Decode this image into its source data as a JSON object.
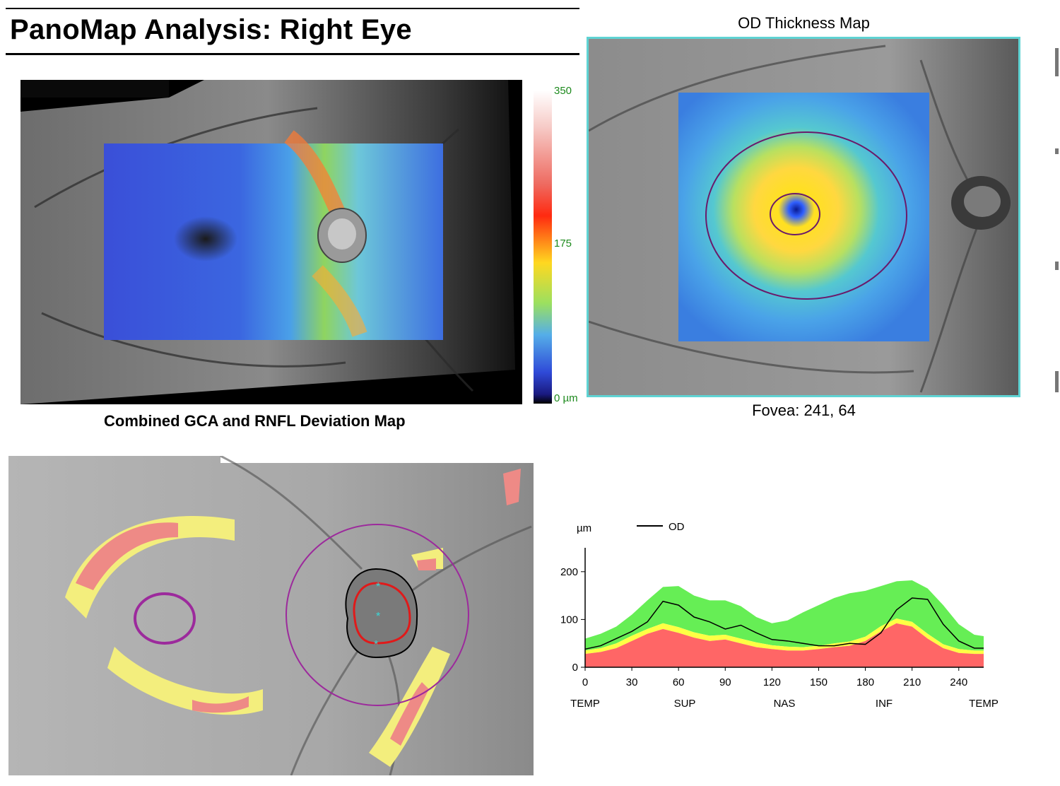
{
  "page": {
    "title": "PanoMap Analysis: Right Eye"
  },
  "deviation_map": {
    "caption": "Combined GCA and RNFL Deviation Map",
    "colorbar": {
      "max_label": "350",
      "mid_label": "175",
      "min_label": "0 µm"
    }
  },
  "thickness_map": {
    "title": "OD Thickness Map",
    "fovea_label": "Fovea: 241, 64",
    "border_color": "#5fd3d3"
  },
  "significance_map": {
    "colors": {
      "yellow": "#f3ee7d",
      "red": "#ee8a86",
      "ring": "#9c2a9c"
    }
  },
  "chart_data": {
    "type": "area",
    "ylabel": "µm",
    "legend": "OD",
    "ylim": [
      0,
      250
    ],
    "xlim": [
      0,
      256
    ],
    "xticks": [
      0,
      30,
      60,
      90,
      120,
      150,
      180,
      210,
      240
    ],
    "yticks": [
      0,
      100,
      200
    ],
    "sector_labels": [
      {
        "label": "TEMP",
        "x": 0
      },
      {
        "label": "SUP",
        "x": 64
      },
      {
        "label": "NAS",
        "x": 128
      },
      {
        "label": "INF",
        "x": 192
      },
      {
        "label": "TEMP",
        "x": 256
      }
    ],
    "x": [
      0,
      10,
      20,
      30,
      40,
      50,
      60,
      70,
      80,
      90,
      100,
      110,
      120,
      130,
      140,
      150,
      160,
      170,
      180,
      190,
      200,
      210,
      220,
      230,
      240,
      250,
      256
    ],
    "bands": {
      "red_upper": [
        28,
        32,
        40,
        55,
        70,
        80,
        72,
        62,
        55,
        58,
        50,
        42,
        38,
        35,
        35,
        38,
        42,
        45,
        55,
        75,
        92,
        85,
        60,
        40,
        30,
        28,
        28
      ],
      "yellow_upper": [
        35,
        40,
        50,
        66,
        80,
        92,
        84,
        73,
        66,
        68,
        60,
        52,
        46,
        43,
        42,
        45,
        50,
        54,
        64,
        86,
        102,
        95,
        70,
        48,
        38,
        35,
        35
      ],
      "green_upper": [
        60,
        70,
        85,
        110,
        140,
        168,
        170,
        150,
        140,
        140,
        128,
        105,
        92,
        98,
        115,
        130,
        145,
        155,
        160,
        170,
        180,
        182,
        165,
        130,
        90,
        68,
        65
      ]
    },
    "series": [
      {
        "name": "OD",
        "values": [
          38,
          45,
          60,
          75,
          95,
          138,
          130,
          105,
          95,
          80,
          88,
          72,
          58,
          55,
          50,
          45,
          45,
          50,
          48,
          72,
          120,
          145,
          142,
          90,
          55,
          40,
          40
        ]
      }
    ],
    "colors": {
      "normal": "#66ee55",
      "borderline": "#ffff44",
      "outside": "#ff6666",
      "line": "#000000"
    }
  }
}
